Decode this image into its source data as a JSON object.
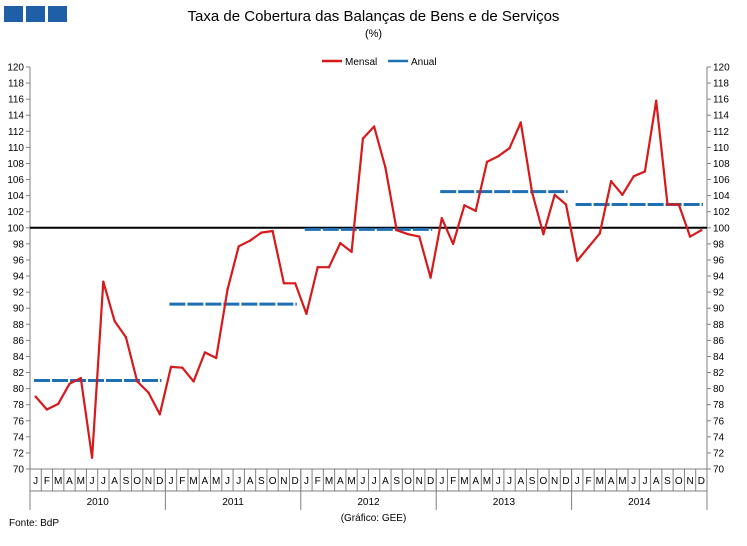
{
  "page": {
    "title": "Taxa de Cobertura das Balanças de Bens e de Serviços",
    "subtitle": "(%)",
    "source": "Fonte: BdP",
    "credit": "(Gráfico: GEE)"
  },
  "colors": {
    "mensal": "#d7191c",
    "anual": "#1f6fb4",
    "reference": "#000000",
    "logo": "#1f5fa8"
  },
  "chart_data": {
    "type": "line",
    "title": "Taxa de Cobertura das Balanças de Bens e de Serviços",
    "subtitle": "(%)",
    "ylim": [
      70,
      120
    ],
    "y_ticks": [
      70,
      72,
      74,
      76,
      78,
      80,
      82,
      84,
      86,
      88,
      90,
      92,
      94,
      96,
      98,
      100,
      102,
      104,
      106,
      108,
      110,
      112,
      114,
      116,
      118,
      120
    ],
    "grid": false,
    "legend_position": "top-center",
    "reference_line": 100,
    "month_labels": [
      "J",
      "F",
      "M",
      "A",
      "M",
      "J",
      "J",
      "A",
      "S",
      "O",
      "N",
      "D"
    ],
    "years": [
      "2010",
      "2011",
      "2012",
      "2013",
      "2014"
    ],
    "series": [
      {
        "name": "Mensal",
        "values": [
          79.0,
          77.4,
          78.1,
          80.6,
          81.3,
          71.4,
          93.3,
          88.4,
          86.4,
          80.9,
          79.5,
          76.8,
          82.7,
          82.6,
          80.9,
          84.5,
          83.8,
          92.3,
          97.7,
          98.4,
          99.4,
          99.6,
          93.1,
          93.1,
          89.3,
          95.1,
          95.1,
          98.1,
          97.0,
          111.1,
          112.6,
          107.5,
          99.7,
          99.2,
          98.9,
          93.8,
          101.2,
          98.0,
          102.8,
          102.1,
          108.2,
          108.9,
          109.9,
          113.1,
          104.4,
          99.2,
          104.1,
          102.9,
          95.9,
          97.6,
          99.3,
          105.8,
          104.1,
          106.4,
          107.0,
          115.8,
          102.9,
          102.9,
          98.9,
          99.7
        ]
      },
      {
        "name": "Anual",
        "values": [
          81.0,
          90.5,
          99.8,
          104.5,
          102.9
        ]
      }
    ]
  }
}
